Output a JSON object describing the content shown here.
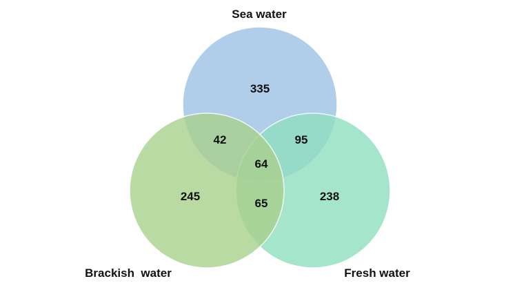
{
  "sets": {
    "sea": {
      "label": "Sea water",
      "color": "#9dc3e6"
    },
    "brackish": {
      "label": "Brackish  water",
      "color": "#a9d18e"
    },
    "fresh": {
      "label": "Fresh water",
      "color": "#8fdfc0"
    }
  },
  "regions": {
    "sea_only": "335",
    "brackish_only": "245",
    "fresh_only": "238",
    "sea_brackish": "42",
    "sea_fresh": "95",
    "brackish_fresh": "65",
    "all_three": "64"
  }
}
